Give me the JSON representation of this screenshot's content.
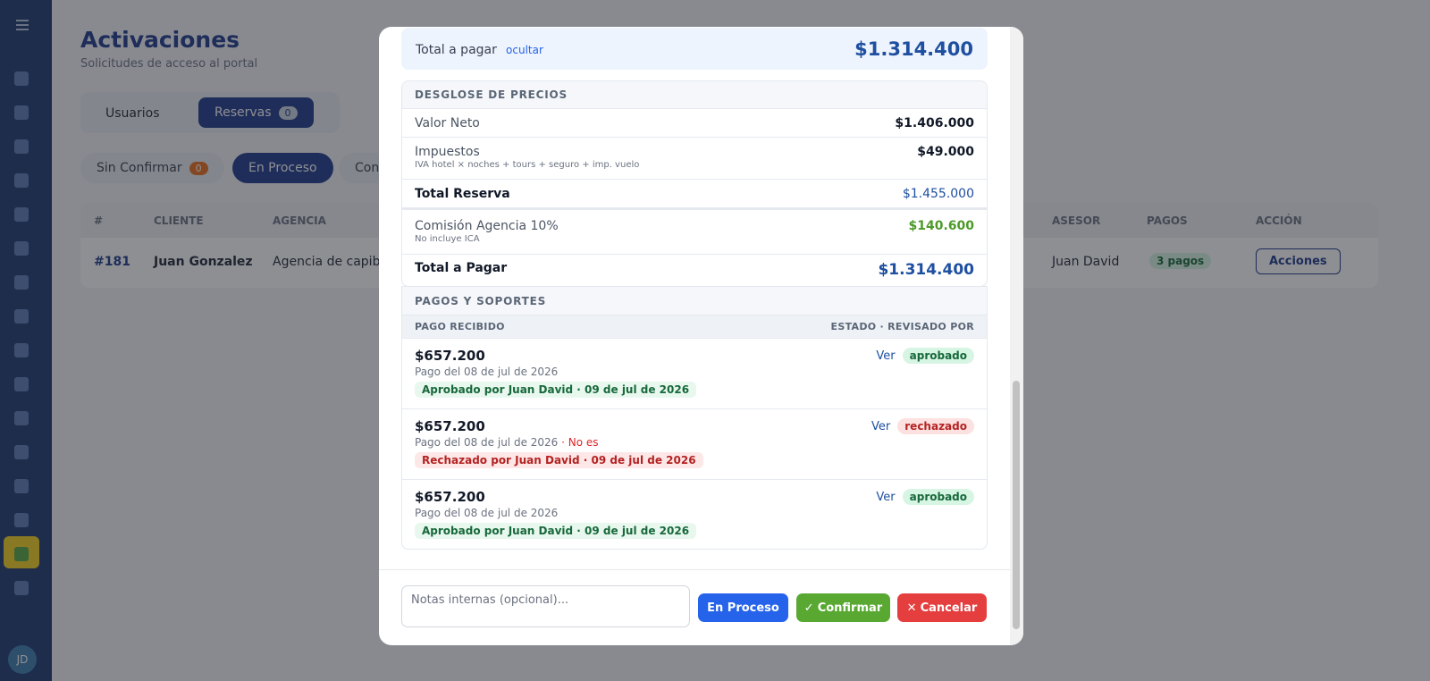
{
  "sidebar": {
    "avatar": "JD"
  },
  "page": {
    "title": "Activaciones",
    "subtitle": "Solicitudes de acceso al portal",
    "tabs": [
      {
        "label": "Usuarios"
      },
      {
        "label": "Reservas",
        "count": 0
      }
    ],
    "filters": [
      {
        "label": "Sin Confirmar",
        "count": 0
      },
      {
        "label": "En Proceso"
      },
      {
        "label": "Con"
      }
    ],
    "table": {
      "headers": [
        "#",
        "CLIENTE",
        "AGENCIA",
        "ASESOR",
        "PAGOS",
        "ACCIÓN"
      ],
      "row": [
        "#181",
        "Juan Gonzalez",
        "Agencia de capiba",
        "Juan David",
        "3 pagos",
        "Acciones"
      ]
    }
  },
  "modal": {
    "summary": {
      "label": "Total a pagar",
      "toggle": "ocultar",
      "amount": "$1.314.400"
    },
    "breakdown": {
      "title": "DESGLOSE DE PRECIOS",
      "rows": [
        {
          "label": "Valor Neto",
          "value": "$1.406.000"
        },
        {
          "label": "Impuestos",
          "note": "IVA hotel × noches + tours + seguro + imp. vuelo",
          "value": "$49.000"
        },
        {
          "label": "Total Reserva",
          "value": "$1.455.000"
        },
        {
          "label": "Comisión Agencia 10%",
          "note": "No incluye ICA",
          "value": "$140.600"
        },
        {
          "label": "Total a Pagar",
          "value": "$1.314.400"
        }
      ]
    },
    "payments": {
      "title": "PAGOS Y SOPORTES",
      "headers": [
        "PAGO RECIBIDO",
        "ESTADO · REVISADO POR"
      ],
      "items": [
        {
          "amount": "$657.200",
          "date": "Pago del 08 de jul de 2026",
          "view": "Ver",
          "status": "aprobado",
          "review": "Aprobado por",
          "reviewer": "Juan David",
          "review_date": "· 09 de jul de 2026"
        },
        {
          "amount": "$657.200",
          "date": "Pago del 08 de jul de 2026",
          "note": "· No es",
          "view": "Ver",
          "status": "rechazado",
          "review": "Rechazado por",
          "reviewer": "Juan David",
          "review_date": "· 09 de jul de 2026"
        },
        {
          "amount": "$657.200",
          "date": "Pago del 08 de jul de 2026",
          "view": "Ver",
          "status": "aprobado",
          "review": "Aprobado por",
          "reviewer": "Juan David",
          "review_date": "· 09 de jul de 2026"
        }
      ]
    },
    "footer": {
      "notes_placeholder": "Notas internas (opcional)...",
      "buttons": [
        "En Proceso",
        "Confirmar",
        "Cancelar"
      ]
    }
  }
}
